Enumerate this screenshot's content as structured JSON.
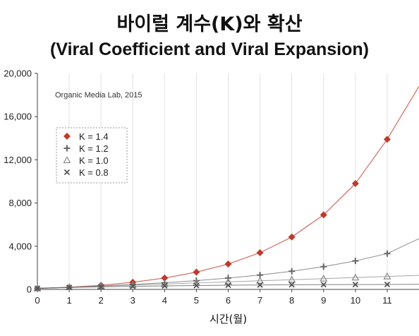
{
  "chart_data": {
    "type": "line",
    "title": "바이럴 계수(K)와 확산",
    "subtitle": "(Viral Coefficient and Viral Expansion)",
    "xlabel": "시간(월)",
    "ylabel": "",
    "annotation": "Organic Media Lab, 2015",
    "xlim": [
      0,
      12
    ],
    "ylim": [
      0,
      20000
    ],
    "x_ticks": [
      "0",
      "1",
      "2",
      "3",
      "4",
      "5",
      "6",
      "7",
      "8",
      "9",
      "10",
      "11"
    ],
    "y_ticks": [
      "0",
      "4,000",
      "8,000",
      "12,000",
      "16,000",
      "20,000"
    ],
    "grid": "vertical",
    "legend_position": "left",
    "x": [
      0,
      1,
      2,
      3,
      4,
      5,
      6,
      7,
      8,
      9,
      10,
      11
    ],
    "series": [
      {
        "name": "K = 1.4",
        "marker": "diamond",
        "color": "#c0392b",
        "values": [
          100,
          200,
          380,
          660,
          1050,
          1600,
          2350,
          3400,
          4850,
          6900,
          9800,
          13900
        ]
      },
      {
        "name": "K = 1.2",
        "marker": "plus",
        "color": "#666666",
        "values": [
          100,
          200,
          320,
          460,
          620,
          810,
          1050,
          1330,
          1680,
          2110,
          2640,
          3320
        ]
      },
      {
        "name": "K = 1.0",
        "marker": "triangle",
        "color": "#888888",
        "values": [
          100,
          200,
          300,
          400,
          500,
          600,
          700,
          800,
          900,
          1000,
          1100,
          1200
        ]
      },
      {
        "name": "K = 0.8",
        "marker": "cross",
        "color": "#555555",
        "values": [
          100,
          180,
          240,
          290,
          330,
          360,
          390,
          410,
          430,
          440,
          450,
          460
        ]
      }
    ],
    "trend_end": {
      "x": 12,
      "values": [
        18800,
        4700,
        1300,
        470
      ]
    }
  }
}
